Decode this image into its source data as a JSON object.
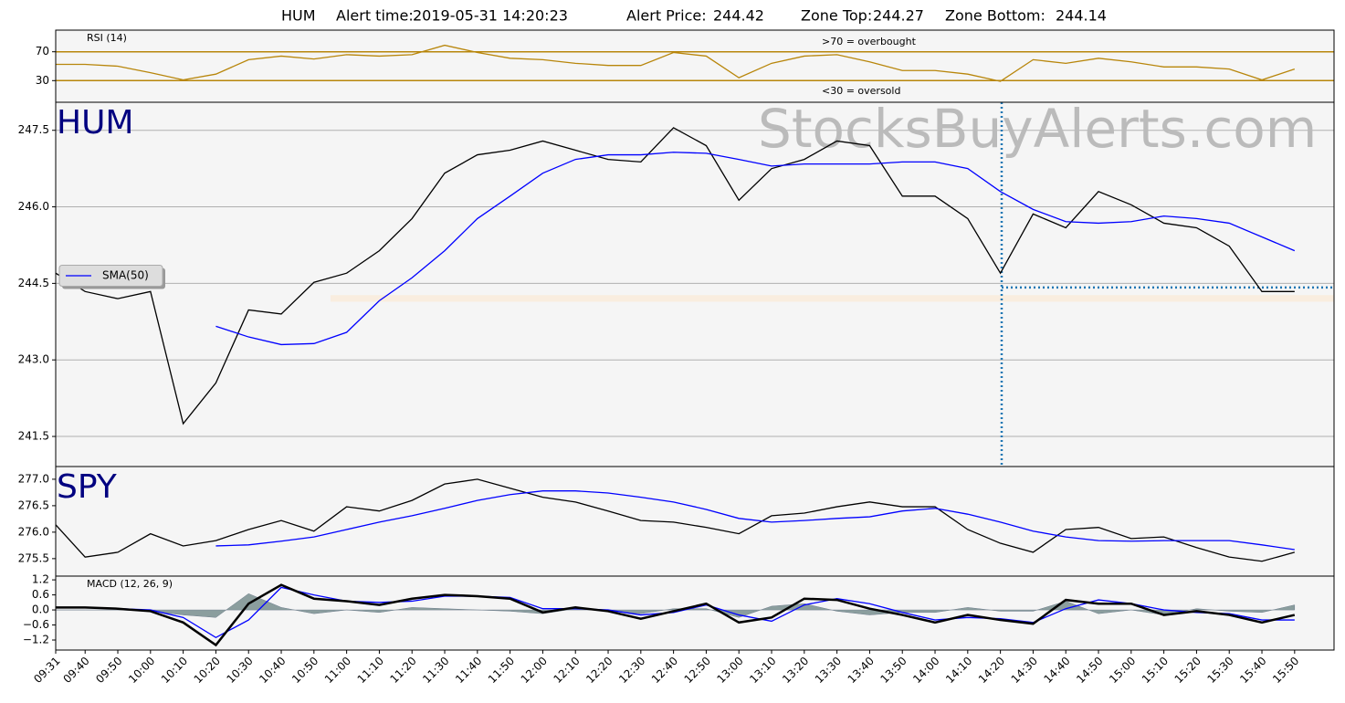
{
  "header": {
    "symbol": "HUM",
    "alert_time_label": "Alert time:",
    "alert_time": "2019-05-31 14:20:23",
    "alert_price_label": "Alert Price:",
    "alert_price": 244.42,
    "zone_top_label": "Zone Top:",
    "zone_top": 244.27,
    "zone_bottom_label": "Zone Bottom:",
    "zone_bottom": 244.14
  },
  "chart_data": [
    {
      "type": "line",
      "label": "RSI (14)",
      "annotations": [
        ">70 = overbought",
        "<30 = oversold"
      ],
      "ylim": [
        0,
        100
      ],
      "yticks": [
        30,
        70
      ],
      "grid": true,
      "grid_color": "#b8860b",
      "series": [
        {
          "color": "#b8860b",
          "values": [
            52.5,
            52.5,
            50,
            41,
            31,
            39,
            59,
            64,
            60,
            66,
            64,
            66,
            79,
            69,
            61,
            59,
            54,
            51,
            51,
            69,
            64,
            34,
            54,
            64,
            66,
            56,
            44,
            44,
            39,
            29,
            59,
            54,
            61,
            56,
            49,
            49,
            46,
            31,
            46
          ]
        }
      ]
    },
    {
      "type": "line",
      "label": "HUM",
      "watermark": "StocksBuyAlerts.com",
      "ylim": [
        240.91,
        248.05
      ],
      "yticks": [
        241.5,
        {
          "value": 243,
          "label": "243.0"
        },
        244.5,
        {
          "value": 246,
          "label": "246.0"
        },
        247.5
      ],
      "grid": true,
      "grid_color": "#b0b0b0",
      "legend": "center left",
      "series": [
        {
          "color": "#000000",
          "values": [
            244.7,
            244.34,
            244.2,
            244.34,
            241.75,
            242.55,
            243.98,
            243.9,
            244.52,
            244.7,
            245.14,
            245.77,
            246.66,
            247.02,
            247.11,
            247.29,
            247.11,
            246.93,
            246.88,
            247.55,
            247.2,
            246.13,
            246.75,
            246.93,
            247.29,
            247.2,
            246.21,
            246.21,
            245.77,
            244.7,
            245.86,
            245.59,
            246.3,
            246.04,
            245.68,
            245.59,
            245.23,
            244.34,
            244.34
          ]
        },
        {
          "name": "SMA(50)",
          "color": "#0000ff",
          "values": [
            null,
            null,
            null,
            null,
            null,
            243.66,
            243.45,
            243.3,
            243.32,
            243.54,
            244.16,
            244.61,
            245.14,
            245.77,
            246.21,
            246.66,
            246.93,
            247.02,
            247.02,
            247.07,
            247.05,
            246.93,
            246.8,
            246.84,
            246.84,
            246.84,
            246.88,
            246.88,
            246.75,
            246.3,
            245.95,
            245.71,
            245.68,
            245.71,
            245.82,
            245.77,
            245.68,
            245.41,
            245.14
          ]
        }
      ]
    },
    {
      "type": "line",
      "label": "SPY",
      "ylim": [
        275.17,
        277.24
      ],
      "yticks": [
        {
          "value": 277,
          "label": "277.0"
        },
        276.5,
        {
          "value": 276,
          "label": "276.0"
        },
        275.5
      ],
      "series": [
        {
          "color": "#000000",
          "values": [
            276.14,
            275.53,
            275.62,
            275.97,
            275.74,
            275.84,
            276.05,
            276.22,
            276.02,
            276.48,
            276.4,
            276.6,
            276.91,
            277.0,
            276.83,
            276.66,
            276.57,
            276.4,
            276.22,
            276.19,
            276.09,
            275.97,
            276.31,
            276.36,
            276.48,
            276.57,
            276.48,
            276.48,
            276.05,
            275.79,
            275.62,
            276.05,
            276.09,
            275.88,
            275.91,
            275.71,
            275.53,
            275.45,
            275.62
          ]
        },
        {
          "color": "#0000ff",
          "values": [
            null,
            null,
            null,
            null,
            null,
            275.74,
            275.76,
            275.83,
            275.91,
            276.05,
            276.19,
            276.31,
            276.45,
            276.6,
            276.71,
            276.78,
            276.78,
            276.74,
            276.66,
            276.57,
            276.43,
            276.26,
            276.19,
            276.22,
            276.26,
            276.29,
            276.4,
            276.45,
            276.34,
            276.19,
            276.02,
            275.91,
            275.84,
            275.83,
            275.84,
            275.84,
            275.84,
            275.76,
            275.67
          ]
        }
      ]
    },
    {
      "type": "line",
      "label": "MACD (12, 26, 9)",
      "x": [
        "09:31",
        "09:40",
        "09:50",
        "10:00",
        "10:10",
        "10:20",
        "10:30",
        "10:40",
        "10:50",
        "11:00",
        "11:10",
        "11:20",
        "11:30",
        "11:40",
        "11:50",
        "12:00",
        "12:10",
        "12:20",
        "12:30",
        "12:40",
        "12:50",
        "13:00",
        "13:10",
        "13:20",
        "13:30",
        "13:40",
        "13:50",
        "14:00",
        "14:10",
        "14:20",
        "14:30",
        "14:40",
        "14:50",
        "15:00",
        "15:10",
        "15:20",
        "15:30",
        "15:40",
        "15:50"
      ],
      "ylim": [
        -1.6,
        1.35
      ],
      "yticks": [
        1.2,
        0.6,
        {
          "value": 0,
          "label": "0.0"
        },
        {
          "value": -0.6,
          "label": "−0.6"
        },
        {
          "value": -1.2,
          "label": "−1.2"
        }
      ],
      "series": [
        {
          "color": "#5f7a7a",
          "style": "area",
          "values": [
            0,
            0,
            0,
            -0.05,
            -0.2,
            -0.3,
            0.65,
            0.1,
            -0.15,
            0,
            -0.1,
            0.1,
            0.05,
            0,
            -0.05,
            -0.15,
            0.05,
            -0.05,
            -0.15,
            0.05,
            0.05,
            -0.3,
            0.15,
            0.25,
            -0.05,
            -0.2,
            -0.1,
            -0.1,
            0.1,
            -0.05,
            -0.05,
            0.35,
            -0.15,
            0,
            -0.2,
            0.05,
            -0.05,
            -0.1,
            0.2
          ]
        },
        {
          "color": "#0000ff",
          "values": [
            0.1,
            0.1,
            0.05,
            0,
            -0.3,
            -1.1,
            -0.4,
            0.9,
            0.6,
            0.35,
            0.3,
            0.35,
            0.55,
            0.55,
            0.5,
            0.05,
            0.05,
            0,
            -0.2,
            -0.1,
            0.2,
            -0.2,
            -0.45,
            0.2,
            0.45,
            0.25,
            -0.1,
            -0.4,
            -0.3,
            -0.35,
            -0.5,
            0.05,
            0.4,
            0.25,
            0,
            -0.1,
            -0.15,
            -0.4,
            -0.4
          ]
        },
        {
          "color": "#000000",
          "width": 2.5,
          "values": [
            0.1,
            0.1,
            0.05,
            -0.05,
            -0.5,
            -1.4,
            0.25,
            1.0,
            0.45,
            0.35,
            0.2,
            0.45,
            0.6,
            0.55,
            0.45,
            -0.1,
            0.1,
            -0.05,
            -0.35,
            -0.05,
            0.25,
            -0.5,
            -0.3,
            0.45,
            0.4,
            0.05,
            -0.2,
            -0.5,
            -0.2,
            -0.4,
            -0.55,
            0.4,
            0.25,
            0.25,
            -0.2,
            -0.05,
            -0.2,
            -0.5,
            -0.2
          ]
        }
      ]
    }
  ]
}
